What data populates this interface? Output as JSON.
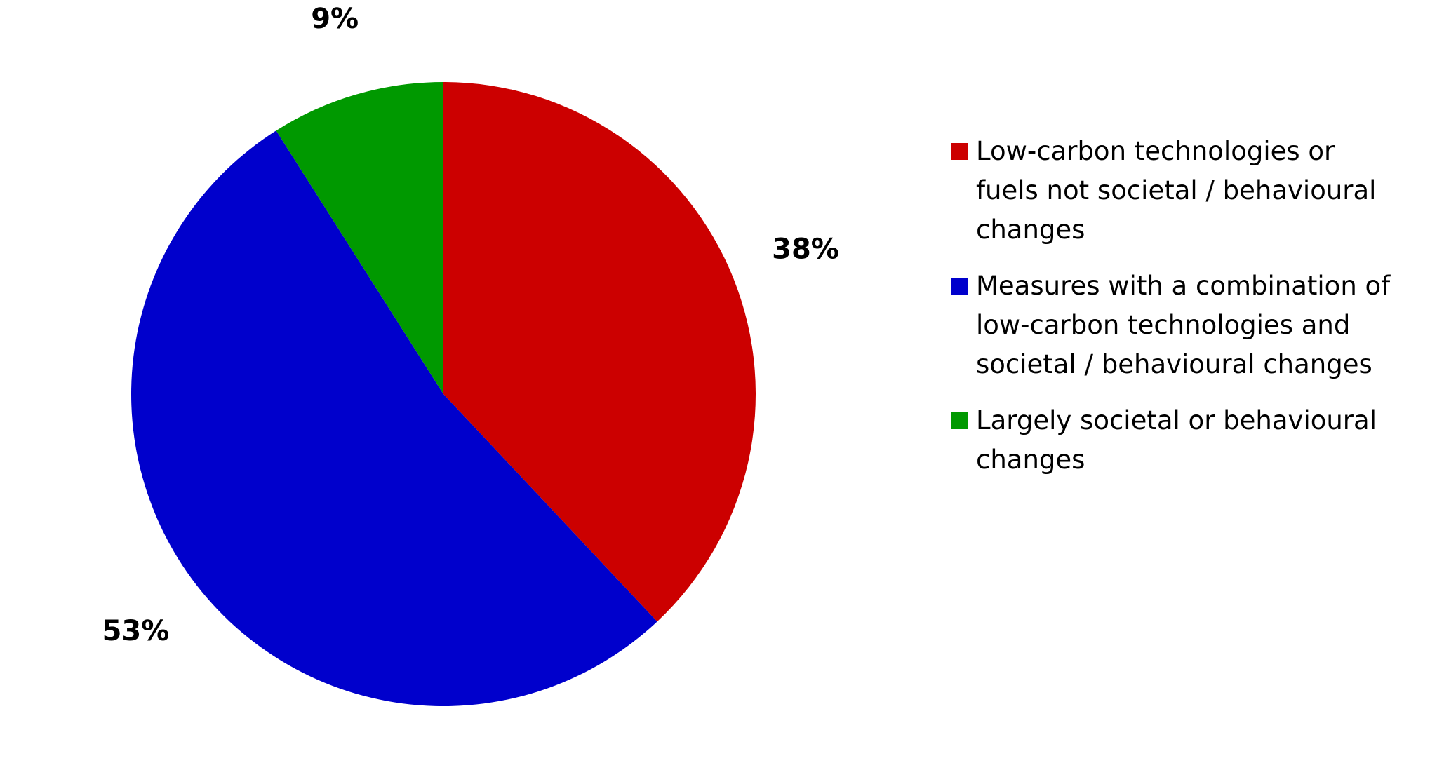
{
  "chart_data": {
    "type": "pie",
    "title": "",
    "slices": [
      {
        "label": "Low-carbon technologies or fuels not societal / behavioural changes",
        "value": 38,
        "display": "38%",
        "color": "#CC0000"
      },
      {
        "label": "Measures with a combination of low-carbon technologies and societal / behavioural changes",
        "value": 53,
        "display": "53%",
        "color": "#0000CC"
      },
      {
        "label": "Largely societal or behavioural changes",
        "value": 9,
        "display": "9%",
        "color": "#009900"
      }
    ],
    "start_angle_deg": 0,
    "direction": "clockwise",
    "legend_position": "right"
  }
}
